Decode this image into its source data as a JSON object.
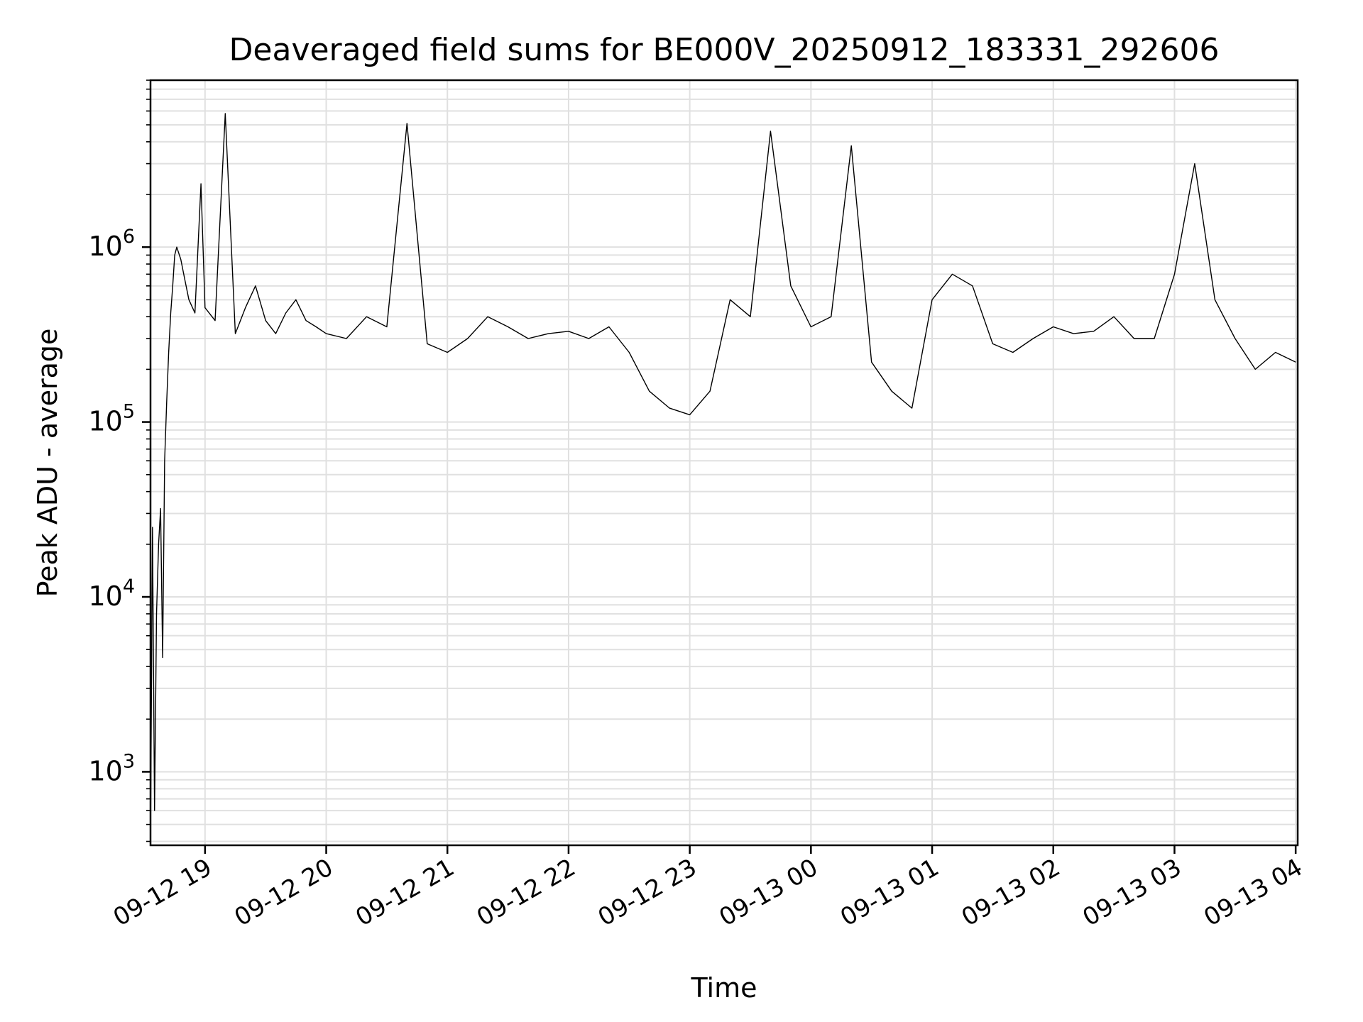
{
  "chart_data": {
    "type": "line",
    "title": "Deaveraged field sums for BE000V_20250912_183331_292606",
    "xlabel": "Time",
    "ylabel": "Peak ADU - average",
    "yscale": "log",
    "xlim": [
      "2025-09-12 18:33",
      "2025-09-13 04:01"
    ],
    "ylim": [
      380,
      9000000
    ],
    "grid": true,
    "line_color": "#000000",
    "grid_color": "#e0e0e0",
    "x_ticks": [
      {
        "label": "09-12 19",
        "t": "2025-09-12 19:00"
      },
      {
        "label": "09-12 20",
        "t": "2025-09-12 20:00"
      },
      {
        "label": "09-12 21",
        "t": "2025-09-12 21:00"
      },
      {
        "label": "09-12 22",
        "t": "2025-09-12 22:00"
      },
      {
        "label": "09-12 23",
        "t": "2025-09-12 23:00"
      },
      {
        "label": "09-13 00",
        "t": "2025-09-13 00:00"
      },
      {
        "label": "09-13 01",
        "t": "2025-09-13 01:00"
      },
      {
        "label": "09-13 02",
        "t": "2025-09-13 02:00"
      },
      {
        "label": "09-13 03",
        "t": "2025-09-13 03:00"
      },
      {
        "label": "09-13 04",
        "t": "2025-09-13 04:00"
      }
    ],
    "y_ticks": [
      {
        "base": "10",
        "exp": "3",
        "value": 1000
      },
      {
        "base": "10",
        "exp": "4",
        "value": 10000
      },
      {
        "base": "10",
        "exp": "5",
        "value": 100000
      },
      {
        "base": "10",
        "exp": "6",
        "value": 1000000
      }
    ],
    "series": [
      {
        "values_time": [
          "2025-09-12 18:33",
          "2025-09-12 18:34",
          "2025-09-12 18:35",
          "2025-09-12 18:36",
          "2025-09-12 18:37",
          "2025-09-12 18:38",
          "2025-09-12 18:39",
          "2025-09-12 18:40",
          "2025-09-12 18:41",
          "2025-09-12 18:42",
          "2025-09-12 18:43",
          "2025-09-12 18:44",
          "2025-09-12 18:45",
          "2025-09-12 18:46",
          "2025-09-12 18:48",
          "2025-09-12 18:50",
          "2025-09-12 18:52",
          "2025-09-12 18:55",
          "2025-09-12 18:58",
          "2025-09-12 19:00",
          "2025-09-12 19:05",
          "2025-09-12 19:10",
          "2025-09-12 19:15",
          "2025-09-12 19:20",
          "2025-09-12 19:25",
          "2025-09-12 19:30",
          "2025-09-12 19:35",
          "2025-09-12 19:40",
          "2025-09-12 19:45",
          "2025-09-12 19:50",
          "2025-09-12 19:55",
          "2025-09-12 20:00",
          "2025-09-12 20:10",
          "2025-09-12 20:20",
          "2025-09-12 20:30",
          "2025-09-12 20:40",
          "2025-09-12 20:50",
          "2025-09-12 21:00",
          "2025-09-12 21:10",
          "2025-09-12 21:20",
          "2025-09-12 21:30",
          "2025-09-12 21:40",
          "2025-09-12 21:50",
          "2025-09-12 22:00",
          "2025-09-12 22:10",
          "2025-09-12 22:20",
          "2025-09-12 22:30",
          "2025-09-12 22:40",
          "2025-09-12 22:50",
          "2025-09-12 23:00",
          "2025-09-12 23:10",
          "2025-09-12 23:20",
          "2025-09-12 23:30",
          "2025-09-12 23:40",
          "2025-09-12 23:50",
          "2025-09-13 00:00",
          "2025-09-13 00:10",
          "2025-09-13 00:20",
          "2025-09-13 00:30",
          "2025-09-13 00:40",
          "2025-09-13 00:50",
          "2025-09-13 01:00",
          "2025-09-13 01:10",
          "2025-09-13 01:20",
          "2025-09-13 01:30",
          "2025-09-13 01:40",
          "2025-09-13 01:50",
          "2025-09-13 02:00",
          "2025-09-13 02:10",
          "2025-09-13 02:20",
          "2025-09-13 02:30",
          "2025-09-13 02:40",
          "2025-09-13 02:50",
          "2025-09-13 03:00",
          "2025-09-13 03:10",
          "2025-09-13 03:20",
          "2025-09-13 03:30",
          "2025-09-13 03:40",
          "2025-09-13 03:50",
          "2025-09-13 04:00"
        ],
        "values": [
          400,
          25000,
          600,
          8000,
          20000,
          32000,
          4500,
          60000,
          130000,
          250000,
          420000,
          600000,
          900000,
          1000000,
          850000,
          650000,
          500000,
          420000,
          2300000,
          450000,
          380000,
          5800000,
          320000,
          450000,
          600000,
          380000,
          320000,
          420000,
          500000,
          380000,
          350000,
          320000,
          300000,
          400000,
          350000,
          5100000,
          280000,
          250000,
          300000,
          400000,
          350000,
          300000,
          320000,
          330000,
          300000,
          350000,
          250000,
          150000,
          120000,
          110000,
          150000,
          500000,
          400000,
          4600000,
          600000,
          350000,
          400000,
          3800000,
          220000,
          150000,
          120000,
          500000,
          700000,
          600000,
          280000,
          250000,
          300000,
          350000,
          320000,
          330000,
          400000,
          300000,
          300000,
          700000,
          3000000,
          500000,
          300000,
          200000,
          250000,
          220000
        ]
      }
    ]
  }
}
